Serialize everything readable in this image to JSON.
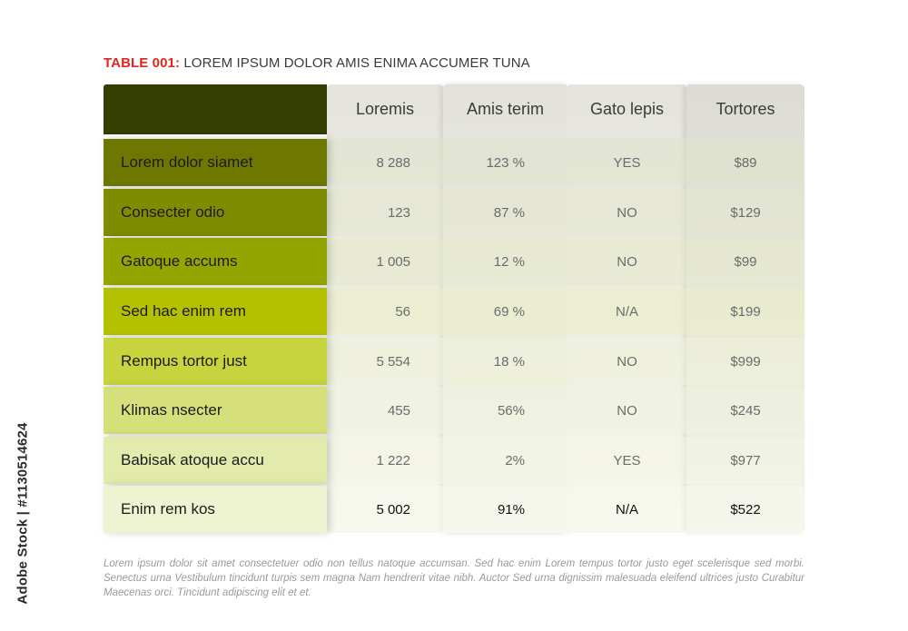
{
  "watermark": "Adobe Stock | #1130514624",
  "title": {
    "prefix": "TABLE 001:",
    "text": "LOREM IPSUM DOLOR AMIS ENIMA ACCUMER TUNA"
  },
  "colors": {
    "header_corner": "#343e00",
    "title_prefix": "#e2251b",
    "row_label_bg": [
      "#6e7800",
      "#7d8c00",
      "#93a500",
      "#b4c100",
      "#c8d43e",
      "#d5e07a",
      "#e2ebab",
      "#eef4d2"
    ],
    "row_data_tint": [
      "#dfe3c8",
      "#e3e6cc",
      "#e5eac9",
      "#ebefc6",
      "#eff2d6",
      "#f1f4dc",
      "#f4f6e4",
      "#f8f9ee"
    ]
  },
  "table": {
    "columns": [
      "Loremis",
      "Amis terim",
      "Gato lepis",
      "Tortores"
    ],
    "rows": [
      {
        "label": "Lorem dolor siamet",
        "values": [
          "8 288",
          "123 %",
          "YES",
          "$89"
        ]
      },
      {
        "label": "Consecter odio",
        "values": [
          "123",
          "87 %",
          "NO",
          "$129"
        ]
      },
      {
        "label": "Gatoque accums",
        "values": [
          "1 005",
          "12 %",
          "NO",
          "$99"
        ]
      },
      {
        "label": "Sed hac enim rem",
        "values": [
          "56",
          "69 %",
          "N/A",
          "$199"
        ]
      },
      {
        "label": "Rempus tortor just",
        "values": [
          "5 554",
          "18 %",
          "NO",
          "$999"
        ]
      },
      {
        "label": "Klimas nsecter",
        "values": [
          "455",
          "56%",
          "NO",
          "$245"
        ]
      },
      {
        "label": "Babisak atoque accu",
        "values": [
          "1 222",
          "2%",
          "YES",
          "$977"
        ]
      },
      {
        "label": "Enim rem kos",
        "values": [
          "5 002",
          "91%",
          "N/A",
          "$522"
        ]
      }
    ]
  },
  "footnote": "Lorem ipsum dolor sit amet consectetuer odio non tellus natoque accumsan. Sed hac enim Lorem tempus tortor justo eget scelerisque sed morbi. Senectus urna Vestibulum tincidunt turpis sem magna Nam hendrerit vitae nibh. Auctor Sed urna dignissim malesuada eleifend ultrices justo Curabitur Maecenas orci. Tincidunt adipiscing elit et et."
}
